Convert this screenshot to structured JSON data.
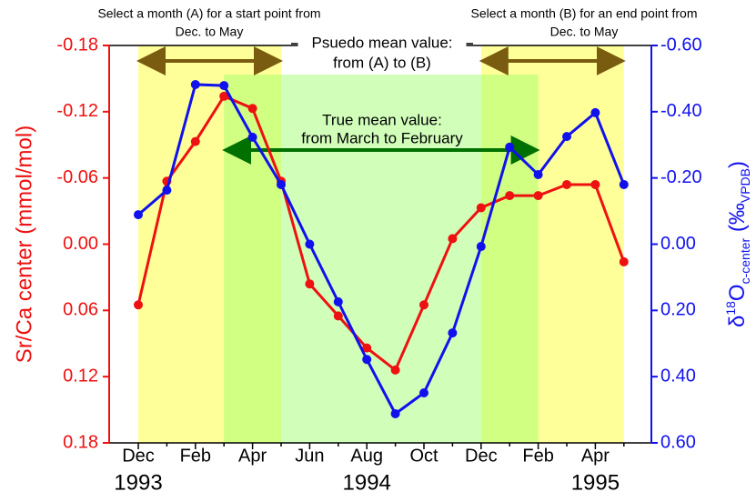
{
  "chart_data": {
    "type": "line",
    "categories": [
      "Dec",
      null,
      "Feb",
      null,
      "Apr",
      null,
      "Jun",
      null,
      "Aug",
      null,
      "Oct",
      null,
      "Dec",
      null,
      "Feb",
      null,
      "Apr",
      null
    ],
    "years": [
      "1993",
      null,
      null,
      null,
      null,
      null,
      null,
      null,
      "1994",
      null,
      null,
      null,
      null,
      null,
      null,
      null,
      "1995",
      null
    ],
    "ylabel": "Sr/Ca center (mmol/mol)",
    "y2label_parts": [
      "δ",
      "18",
      "O",
      "c-center",
      " (‰",
      "VPDB",
      ")"
    ],
    "ylim": [
      0.18,
      -0.18
    ],
    "yticks": [
      -0.18,
      -0.12,
      -0.06,
      {
        "value": 0,
        "label": "0.00"
      },
      0.06,
      0.12,
      0.18
    ],
    "y2lim": [
      0.6,
      -0.6
    ],
    "y2ticks": [
      {
        "value": -0.6,
        "label": "-0.60"
      },
      {
        "value": -0.4,
        "label": "-0.40"
      },
      {
        "value": -0.2,
        "label": "-0.20"
      },
      {
        "value": 0,
        "label": "0.00"
      },
      {
        "value": 0.2,
        "label": "0.20"
      },
      {
        "value": 0.4,
        "label": "0.40"
      },
      {
        "value": 0.6,
        "label": "0.60"
      }
    ],
    "series": [
      {
        "name": "Sr/Ca center",
        "color": "#ee1111",
        "values": [
          0.055,
          -0.057,
          -0.093,
          -0.134,
          -0.123,
          -0.057,
          0.036,
          0.065,
          0.094,
          0.114,
          0.055,
          -0.005,
          -0.033,
          -0.044,
          -0.044,
          -0.054,
          -0.054,
          0.016
        ]
      },
      {
        "name": "δ18O c-center",
        "color": "#1111ee",
        "axis": "y2",
        "values": [
          -0.089,
          -0.163,
          -0.482,
          -0.479,
          -0.323,
          -0.18,
          0.0,
          0.174,
          0.348,
          0.512,
          0.449,
          0.268,
          0.007,
          -0.293,
          -0.21,
          -0.325,
          -0.397,
          -0.18
        ]
      }
    ],
    "annotations": {
      "start_note": [
        "Select a month (A) for a start point from",
        "Dec. to May"
      ],
      "end_note": [
        "Select a month (B) for an end point from",
        "Dec. to May"
      ],
      "pseudo": [
        "Psuedo mean value:",
        "from (A) to (B)"
      ],
      "true_mean": [
        "True mean value:",
        "from March to February"
      ]
    }
  }
}
